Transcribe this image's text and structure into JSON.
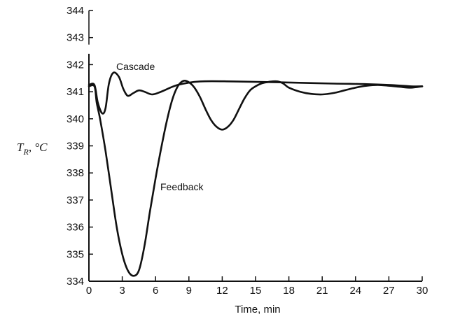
{
  "chart_data": {
    "type": "line",
    "xlabel": "Time,  min",
    "ylabel": "T_R, °C",
    "xlim": [
      0,
      30
    ],
    "ylim": [
      334,
      344
    ],
    "broken_axis": true,
    "x_ticks": [
      "0",
      "3",
      "6",
      "9",
      "12",
      "15",
      "18",
      "21",
      "24",
      "27",
      "30"
    ],
    "y_ticks": [
      "334",
      "335",
      "336",
      "337",
      "338",
      "339",
      "340",
      "341",
      "342",
      "343",
      "344"
    ],
    "grid": false,
    "series": [
      {
        "name": "Cascade",
        "points": [
          [
            0,
            341.25
          ],
          [
            0.5,
            341.25
          ],
          [
            0.8,
            340.6
          ],
          [
            1.2,
            340.2
          ],
          [
            1.5,
            340.4
          ],
          [
            1.8,
            341.3
          ],
          [
            2.2,
            341.7
          ],
          [
            2.7,
            341.55
          ],
          [
            3.1,
            341.1
          ],
          [
            3.5,
            340.85
          ],
          [
            4.0,
            340.95
          ],
          [
            4.5,
            341.05
          ],
          [
            5.0,
            341.0
          ],
          [
            5.7,
            340.9
          ],
          [
            6.5,
            341.0
          ],
          [
            8,
            341.25
          ],
          [
            10,
            341.38
          ],
          [
            13,
            341.38
          ],
          [
            17,
            341.35
          ],
          [
            22,
            341.3
          ],
          [
            25,
            341.28
          ],
          [
            27,
            341.25
          ],
          [
            29,
            341.2
          ],
          [
            30,
            341.2
          ]
        ]
      },
      {
        "name": "Feedback",
        "points": [
          [
            0,
            341.2
          ],
          [
            0.5,
            341.2
          ],
          [
            0.7,
            340.6
          ],
          [
            1.0,
            340.0
          ],
          [
            1.5,
            338.8
          ],
          [
            2.0,
            337.4
          ],
          [
            2.5,
            336.0
          ],
          [
            3.0,
            335.0
          ],
          [
            3.5,
            334.4
          ],
          [
            4.0,
            334.2
          ],
          [
            4.5,
            334.4
          ],
          [
            5.0,
            335.3
          ],
          [
            5.5,
            336.6
          ],
          [
            6.0,
            337.8
          ],
          [
            6.5,
            338.9
          ],
          [
            7.0,
            339.9
          ],
          [
            7.5,
            340.7
          ],
          [
            8.0,
            341.2
          ],
          [
            8.5,
            341.4
          ],
          [
            9.0,
            341.35
          ],
          [
            9.5,
            341.15
          ],
          [
            10,
            340.8
          ],
          [
            10.5,
            340.35
          ],
          [
            11,
            339.95
          ],
          [
            11.5,
            339.7
          ],
          [
            12,
            339.6
          ],
          [
            12.5,
            339.7
          ],
          [
            13,
            339.95
          ],
          [
            13.5,
            340.35
          ],
          [
            14,
            340.75
          ],
          [
            14.5,
            341.05
          ],
          [
            15,
            341.2
          ],
          [
            15.5,
            341.3
          ],
          [
            16,
            341.35
          ],
          [
            16.5,
            341.38
          ],
          [
            17,
            341.38
          ],
          [
            17.5,
            341.3
          ],
          [
            18,
            341.15
          ],
          [
            19,
            341.0
          ],
          [
            20,
            340.92
          ],
          [
            21,
            340.9
          ],
          [
            22,
            340.95
          ],
          [
            23,
            341.05
          ],
          [
            24,
            341.15
          ],
          [
            25,
            341.22
          ],
          [
            26,
            341.25
          ],
          [
            27,
            341.22
          ],
          [
            28,
            341.18
          ],
          [
            29,
            341.15
          ],
          [
            30,
            341.2
          ]
        ]
      }
    ],
    "annotations": {
      "cascade_label": "Cascade",
      "feedback_label": "Feedback"
    }
  }
}
